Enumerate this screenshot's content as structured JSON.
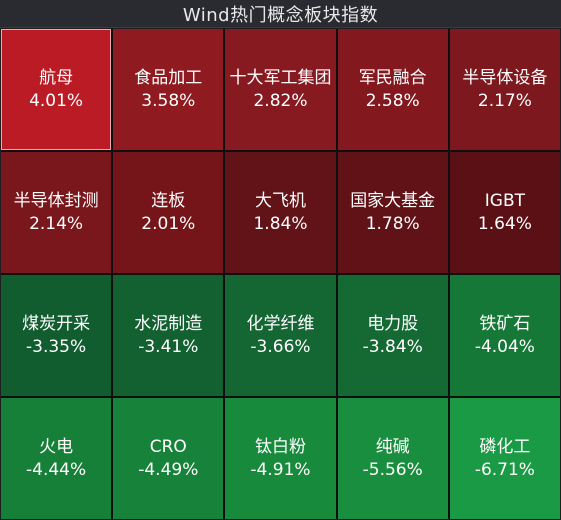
{
  "header": {
    "title": "Wind热门概念板块指数"
  },
  "tiles": [
    {
      "name": "航母",
      "change": "4.01%",
      "color": "#ba1b24",
      "selected": true
    },
    {
      "name": "食品加工",
      "change": "3.58%",
      "color": "#8f1a20"
    },
    {
      "name": "十大军工集团",
      "change": "2.82%",
      "color": "#861a20"
    },
    {
      "name": "军民融合",
      "change": "2.58%",
      "color": "#83191f"
    },
    {
      "name": "半导体设备",
      "change": "2.17%",
      "color": "#7c181e"
    },
    {
      "name": "半导体封测",
      "change": "2.14%",
      "color": "#7a171c"
    },
    {
      "name": "连板",
      "change": "2.01%",
      "color": "#751519"
    },
    {
      "name": "大飞机",
      "change": "1.84%",
      "color": "#621318"
    },
    {
      "name": "国家大基金",
      "change": "1.78%",
      "color": "#601217"
    },
    {
      "name": "IGBT",
      "change": "1.64%",
      "color": "#5a1015"
    },
    {
      "name": "煤炭开采",
      "change": "-3.35%",
      "color": "#125d30"
    },
    {
      "name": "水泥制造",
      "change": "-3.41%",
      "color": "#136030"
    },
    {
      "name": "化学纤维",
      "change": "-3.66%",
      "color": "#146632"
    },
    {
      "name": "电力股",
      "change": "-3.84%",
      "color": "#156a34"
    },
    {
      "name": "铁矿石",
      "change": "-4.04%",
      "color": "#167836"
    },
    {
      "name": "火电",
      "change": "-4.44%",
      "color": "#178038"
    },
    {
      "name": "CRO",
      "change": "-4.49%",
      "color": "#178239"
    },
    {
      "name": "钛白粉",
      "change": "-4.91%",
      "color": "#188a3c"
    },
    {
      "name": "纯碱",
      "change": "-5.56%",
      "color": "#198e3e"
    },
    {
      "name": "磷化工",
      "change": "-6.71%",
      "color": "#1a9a44"
    }
  ]
}
